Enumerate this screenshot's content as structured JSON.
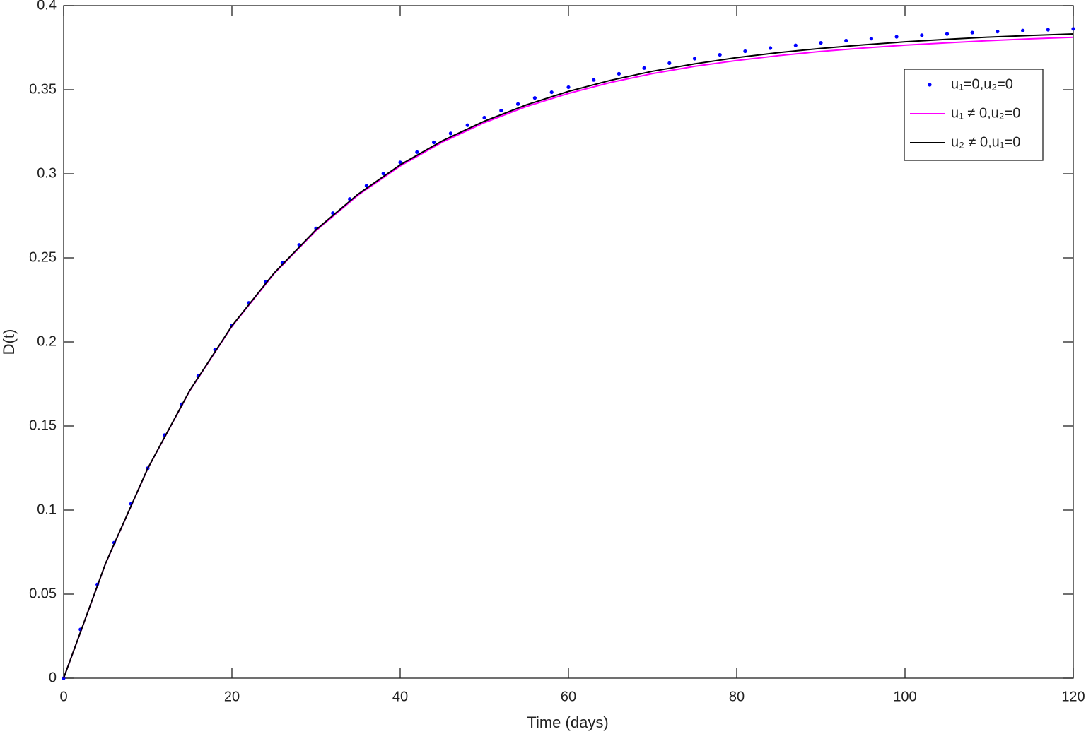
{
  "chart_data": {
    "type": "line",
    "xlabel": "Time (days)",
    "ylabel": "D(t)",
    "xlim": [
      0,
      120
    ],
    "xticks": [
      0,
      20,
      40,
      60,
      80,
      100,
      120
    ],
    "ylim": [
      0,
      0.4
    ],
    "yticks": [
      0,
      0.05,
      0.1,
      0.15,
      0.2,
      0.25,
      0.3,
      0.35,
      0.4
    ],
    "legend": "upper right",
    "series": [
      {
        "name": "u₁=0,u₂=0",
        "color": "#0000ff",
        "style": "dots",
        "x": [
          0,
          2,
          4,
          6,
          8,
          10,
          12,
          14,
          16,
          18,
          20,
          22,
          24,
          26,
          28,
          30,
          32,
          34,
          36,
          38,
          40,
          42,
          44,
          46,
          48,
          50,
          52,
          54,
          56,
          58,
          60,
          63,
          66,
          69,
          72,
          75,
          78,
          81,
          84,
          87,
          90,
          93,
          96,
          99,
          102,
          105,
          108,
          111,
          114,
          117,
          120
        ],
        "values": [
          0,
          0.029,
          0.0558,
          0.0806,
          0.1037,
          0.1249,
          0.1446,
          0.1629,
          0.1797,
          0.1954,
          0.2098,
          0.2232,
          0.2356,
          0.2471,
          0.2577,
          0.2675,
          0.2766,
          0.285,
          0.2929,
          0.3001,
          0.3068,
          0.3129,
          0.3187,
          0.324,
          0.3289,
          0.3334,
          0.3376,
          0.3415,
          0.3451,
          0.3485,
          0.3515,
          0.3558,
          0.3595,
          0.3629,
          0.3658,
          0.3685,
          0.3708,
          0.3729,
          0.3748,
          0.3764,
          0.3779,
          0.3792,
          0.3804,
          0.3815,
          0.3824,
          0.3832,
          0.384,
          0.3846,
          0.3852,
          0.3857,
          0.3862
        ]
      },
      {
        "name": "u₁ ≠ 0,u₂=0",
        "color": "#ff00ff",
        "style": "line",
        "x": [
          0,
          5,
          10,
          15,
          20,
          25,
          30,
          35,
          40,
          45,
          50,
          55,
          60,
          65,
          70,
          75,
          80,
          85,
          90,
          95,
          100,
          105,
          110,
          115,
          120
        ],
        "values": [
          0,
          0.0684,
          0.1247,
          0.171,
          0.2092,
          0.2405,
          0.2662,
          0.2873,
          0.3046,
          0.3188,
          0.3304,
          0.34,
          0.3478,
          0.3543,
          0.3596,
          0.3639,
          0.3674,
          0.3703,
          0.3728,
          0.3748,
          0.3765,
          0.3779,
          0.3792,
          0.3803,
          0.3812
        ]
      },
      {
        "name": "u₂ ≠ 0,u₁=0",
        "color": "#000000",
        "style": "line",
        "x": [
          0,
          5,
          10,
          15,
          20,
          25,
          30,
          35,
          40,
          45,
          50,
          55,
          60,
          65,
          70,
          75,
          80,
          85,
          90,
          95,
          100,
          105,
          110,
          115,
          120
        ],
        "values": [
          0,
          0.0685,
          0.1248,
          0.1712,
          0.2095,
          0.2409,
          0.2667,
          0.2879,
          0.3053,
          0.3196,
          0.3313,
          0.341,
          0.349,
          0.3556,
          0.361,
          0.3654,
          0.3691,
          0.3721,
          0.3746,
          0.3767,
          0.3785,
          0.38,
          0.3813,
          0.3823,
          0.3832
        ]
      }
    ]
  }
}
